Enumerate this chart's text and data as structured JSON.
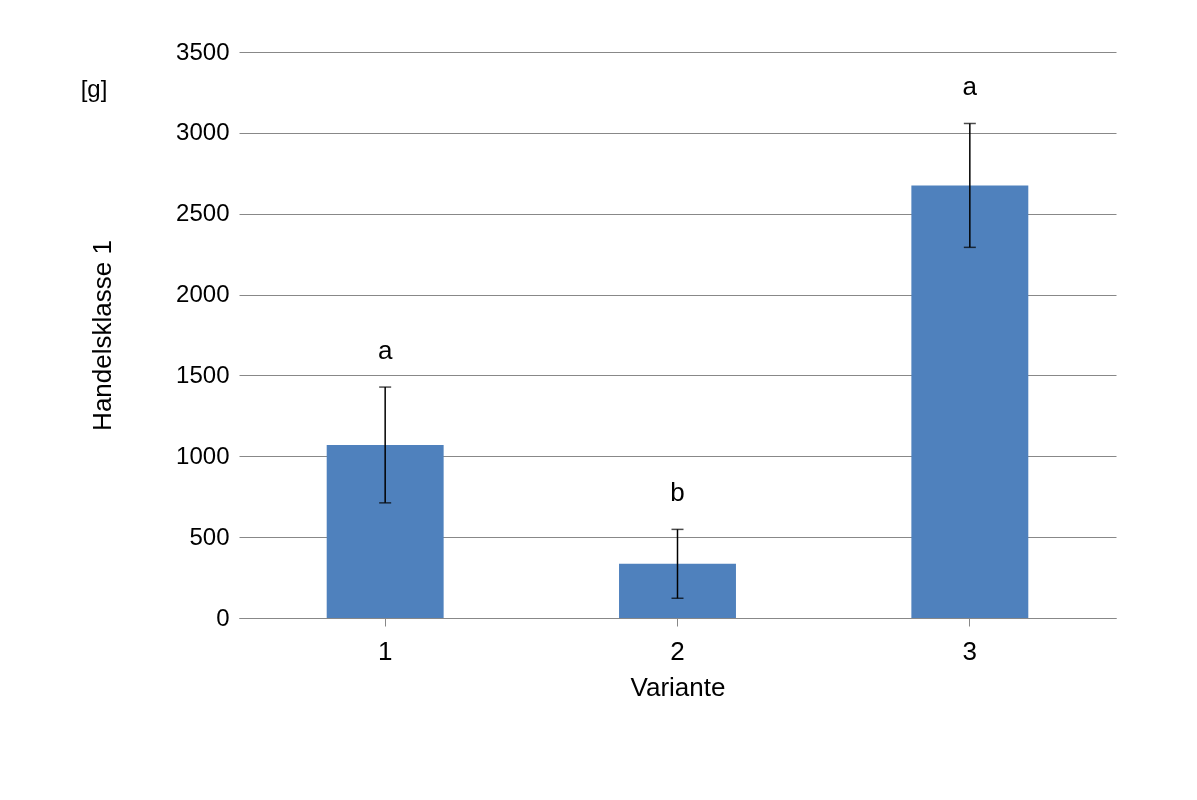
{
  "chart_data": {
    "type": "bar",
    "xlabel": "Variante",
    "ylabel": "Handelsklasse 1",
    "categories": [
      "1",
      "2",
      "3"
    ],
    "values": [
      1070,
      335,
      2675
    ],
    "color": "#4f81bd",
    "errors": [
      358,
      213,
      383
    ],
    "ylim": [
      0,
      3500
    ],
    "yticks": [
      0,
      500,
      1000,
      1500,
      2000,
      2500,
      3000,
      3500
    ],
    "grid": "y",
    "annotations": [
      "[g]",
      "a",
      "b",
      "a"
    ]
  }
}
